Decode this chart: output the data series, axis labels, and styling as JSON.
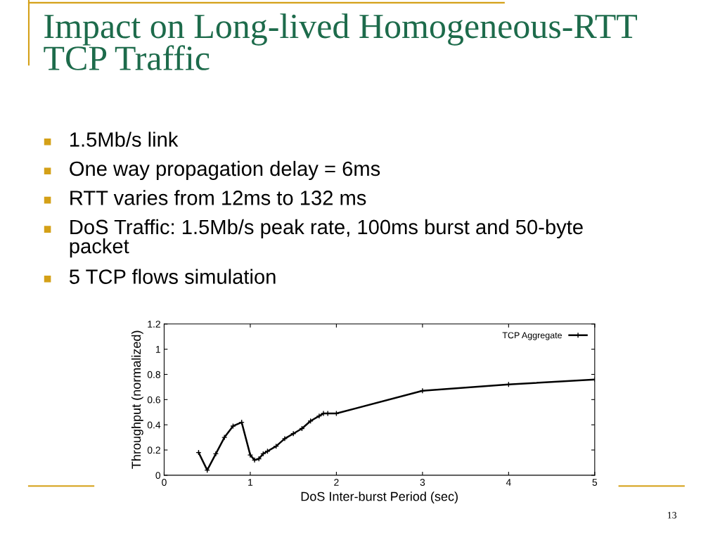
{
  "chart_data": {
    "type": "line",
    "title": "Impact on Long-lived Homogeneous-RTT TCP Traffic",
    "annotations": [
      "1.5Mb/s link",
      "One way propagation delay = 6ms",
      "RTT varies from 12ms to 132 ms",
      "DoS Traffic: 1.5Mb/s peak rate, 100ms burst and 50-byte packet",
      "5 TCP flows simulation",
      "13"
    ],
    "xlabel": "DoS Inter-burst Period (sec)",
    "ylabel": "Throughput (normalized)",
    "series": [
      {
        "name": "TCP Aggregate",
        "color": "#000000",
        "x": [
          0.4,
          0.5,
          0.6,
          0.7,
          0.8,
          0.9,
          1.0,
          1.05,
          1.1,
          1.15,
          1.2,
          1.3,
          1.4,
          1.5,
          1.6,
          1.7,
          1.8,
          1.85,
          1.9,
          2.0,
          3.0,
          4.0,
          5.0
        ],
        "values": [
          0.18,
          0.04,
          0.17,
          0.3,
          0.39,
          0.42,
          0.16,
          0.12,
          0.13,
          0.17,
          0.19,
          0.23,
          0.29,
          0.33,
          0.37,
          0.43,
          0.47,
          0.49,
          0.49,
          0.49,
          0.67,
          0.72,
          0.76
        ]
      }
    ],
    "xlim": [
      0,
      5
    ],
    "ylim": [
      0,
      1.2
    ],
    "xticks": [
      0,
      1,
      2,
      3,
      4,
      5
    ],
    "yticks": [
      0,
      0.2,
      0.4,
      0.6,
      0.8,
      1,
      1.2
    ],
    "grid": false,
    "legend": "top right",
    "marker": "cross",
    "line_style": "solid"
  }
}
